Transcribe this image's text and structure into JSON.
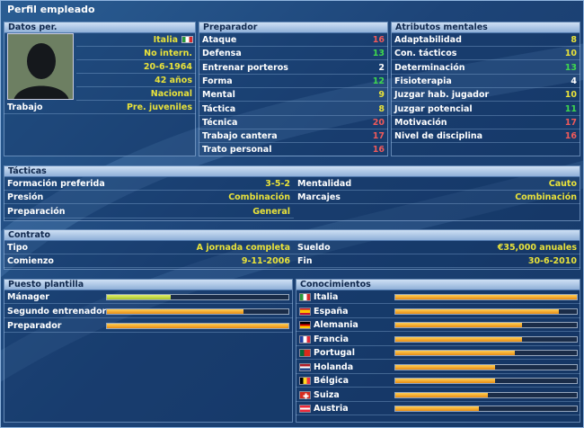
{
  "title": "Perfil empleado",
  "personal": {
    "header": "Datos per.",
    "nationality": "Italia",
    "international": "No intern.",
    "birthdate": "20-6-1964",
    "age": "42 años",
    "level": "Nacional",
    "job_label": "Trabajo",
    "job_value": "Pre. juveniles"
  },
  "preparador": {
    "header": "Preparador",
    "items": [
      {
        "label": "Ataque",
        "value": "16",
        "color": "r"
      },
      {
        "label": "Defensa",
        "value": "13",
        "color": "g"
      },
      {
        "label": "Entrenar porteros",
        "value": "2",
        "color": "w"
      },
      {
        "label": "Forma",
        "value": "12",
        "color": "g"
      },
      {
        "label": "Mental",
        "value": "9",
        "color": "y"
      },
      {
        "label": "Táctica",
        "value": "8",
        "color": "y"
      },
      {
        "label": "Técnica",
        "value": "20",
        "color": "r"
      },
      {
        "label": "Trabajo cantera",
        "value": "17",
        "color": "r"
      },
      {
        "label": "Trato personal",
        "value": "16",
        "color": "r"
      }
    ]
  },
  "mental": {
    "header": "Atributos mentales",
    "items": [
      {
        "label": "Adaptabilidad",
        "value": "8",
        "color": "y"
      },
      {
        "label": "Con. tácticos",
        "value": "10",
        "color": "y"
      },
      {
        "label": "Determinación",
        "value": "13",
        "color": "g"
      },
      {
        "label": "Fisioterapia",
        "value": "4",
        "color": "w"
      },
      {
        "label": "Juzgar hab. jugador",
        "value": "10",
        "color": "y"
      },
      {
        "label": "Juzgar potencial",
        "value": "11",
        "color": "g"
      },
      {
        "label": "Motivación",
        "value": "17",
        "color": "r"
      },
      {
        "label": "Nivel de disciplina",
        "value": "16",
        "color": "r"
      }
    ]
  },
  "tacticas": {
    "header": "Tácticas",
    "formacion_label": "Formación preferida",
    "formacion_value": "3-5-2",
    "presion_label": "Presión",
    "presion_value": "Combinación",
    "preparacion_label": "Preparación",
    "preparacion_value": "General",
    "mentalidad_label": "Mentalidad",
    "mentalidad_value": "Cauto",
    "marcajes_label": "Marcajes",
    "marcajes_value": "Combinación"
  },
  "contrato": {
    "header": "Contrato",
    "tipo_label": "Tipo",
    "tipo_value": "A jornada completa",
    "comienzo_label": "Comienzo",
    "comienzo_value": "9-11-2006",
    "sueldo_label": "Sueldo",
    "sueldo_value": "€35,000 anuales",
    "fin_label": "Fin",
    "fin_value": "30-6-2010"
  },
  "puesto": {
    "header": "Puesto plantilla",
    "items": [
      {
        "label": "Mánager",
        "level": 0.35,
        "tone": "green"
      },
      {
        "label": "Segundo entrenador",
        "level": 0.75,
        "tone": "orange"
      },
      {
        "label": "Preparador",
        "level": 1.0,
        "tone": "orange"
      }
    ]
  },
  "conocimientos": {
    "header": "Conocimientos",
    "items": [
      {
        "label": "Italia",
        "level": 1.0,
        "flag": "italy"
      },
      {
        "label": "España",
        "level": 0.9,
        "flag": "spain"
      },
      {
        "label": "Alemania",
        "level": 0.7,
        "flag": "germany"
      },
      {
        "label": "Francia",
        "level": 0.7,
        "flag": "france"
      },
      {
        "label": "Portugal",
        "level": 0.66,
        "flag": "portugal"
      },
      {
        "label": "Holanda",
        "level": 0.55,
        "flag": "netherlands"
      },
      {
        "label": "Bélgica",
        "level": 0.55,
        "flag": "belgium"
      },
      {
        "label": "Suiza",
        "level": 0.51,
        "flag": "switzerland"
      },
      {
        "label": "Austria",
        "level": 0.46,
        "flag": "austria"
      }
    ]
  }
}
